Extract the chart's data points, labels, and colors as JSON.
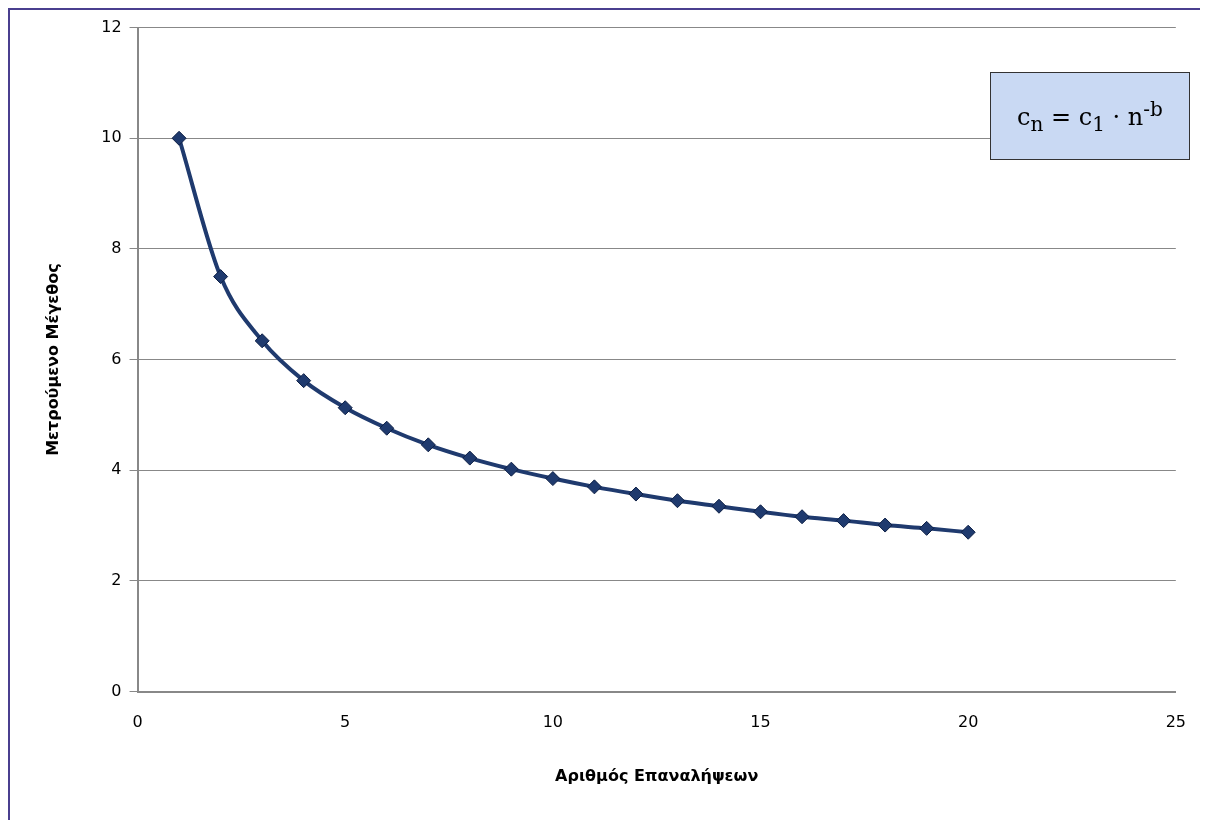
{
  "chart_data": {
    "type": "line",
    "xlabel": "Αριθμός Επαναλήψεων",
    "ylabel": "Μετρούμενο Μέγεθος",
    "x": [
      1,
      2,
      3,
      4,
      5,
      6,
      7,
      8,
      9,
      10,
      11,
      12,
      13,
      14,
      15,
      16,
      17,
      18,
      19,
      20
    ],
    "series": [
      {
        "color": "#1f3a6e",
        "values": [
          10,
          7.5,
          6.34,
          5.62,
          5.13,
          4.76,
          4.46,
          4.22,
          4.02,
          3.85,
          3.7,
          3.57,
          3.45,
          3.35,
          3.25,
          3.16,
          3.09,
          3.01,
          2.95,
          2.88
        ]
      }
    ],
    "xlim": [
      0,
      25
    ],
    "xticks": [
      0,
      5,
      10,
      15,
      20,
      25
    ],
    "ylim": [
      0,
      12
    ],
    "yticks": [
      0,
      2,
      4,
      6,
      8,
      10,
      12
    ],
    "grid": "y",
    "legend": false,
    "marker": "diamond",
    "line_style": "solid",
    "annotations": [
      "c$_{n}$ = c$_{1}$ · n$^{-b}$"
    ]
  }
}
